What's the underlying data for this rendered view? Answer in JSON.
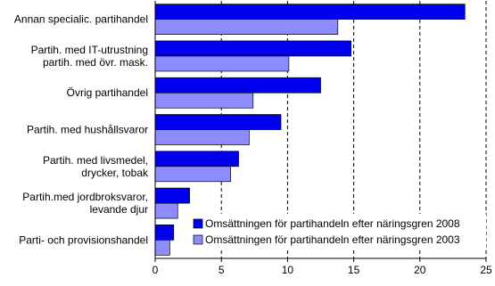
{
  "chart_data": {
    "type": "hbar",
    "categories": [
      "Annan specialic. partihandel",
      "Partih. med IT-utrustning\npartih. med övr. mask.",
      "Övrig partihandel",
      "Partih. med hushållsvaror",
      "Partih. med livsmedel,\ndrycker, tobak",
      "Partih.med jordbroksvaror,\nlevande djur",
      "Parti- och provisionshandel"
    ],
    "series": [
      {
        "name": "Omsättningen för partihandeln efter näringsgren 2008",
        "color": "#0000ee",
        "values": [
          23.4,
          14.8,
          12.5,
          9.5,
          6.3,
          2.6,
          1.4
        ]
      },
      {
        "name": "Omsättningen för partihandeln efter näringsgren 2003",
        "color": "#8c8cff",
        "values": [
          13.8,
          10.1,
          7.4,
          7.1,
          5.7,
          1.7,
          1.1
        ]
      }
    ],
    "xlim": [
      0,
      25
    ],
    "xticks": [
      0,
      5,
      10,
      15,
      20,
      25
    ],
    "grid": true
  }
}
